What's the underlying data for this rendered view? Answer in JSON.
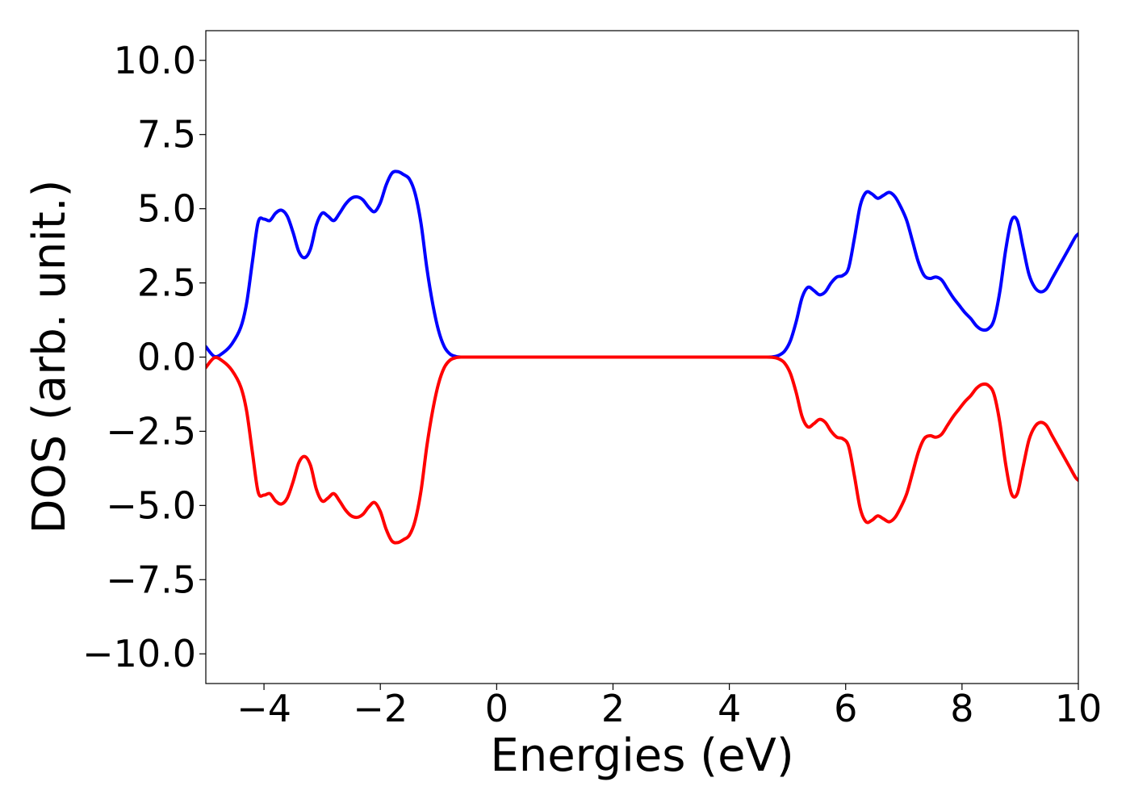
{
  "chart_data": {
    "type": "line",
    "title": "",
    "xlabel": "Energies (eV)",
    "ylabel": "DOS (arb. unit.)",
    "xlim": [
      -5,
      10
    ],
    "ylim": [
      -11,
      11
    ],
    "grid": false,
    "legend": "none",
    "x_ticks": [
      -4,
      -2,
      0,
      2,
      4,
      6,
      8,
      10
    ],
    "x_tick_labels": [
      "−4",
      "−2",
      "0",
      "2",
      "4",
      "6",
      "8",
      "10"
    ],
    "y_ticks": [
      10,
      7.5,
      5,
      2.5,
      0,
      -2.5,
      -5,
      -7.5,
      -10
    ],
    "y_tick_labels": [
      "10.0",
      "7.5",
      "5.0",
      "2.5",
      "0.0",
      "−2.5",
      "−5.0",
      "−7.5",
      "−10.0"
    ],
    "series": [
      {
        "color": "#0000ff",
        "x": [
          -5.0,
          -4.85,
          -4.7,
          -4.55,
          -4.4,
          -4.3,
          -4.2,
          -4.1,
          -4.0,
          -3.9,
          -3.8,
          -3.7,
          -3.6,
          -3.5,
          -3.4,
          -3.3,
          -3.2,
          -3.1,
          -3.0,
          -2.9,
          -2.8,
          -2.7,
          -2.6,
          -2.5,
          -2.4,
          -2.3,
          -2.2,
          -2.1,
          -2.0,
          -1.9,
          -1.8,
          -1.7,
          -1.6,
          -1.5,
          -1.4,
          -1.3,
          -1.2,
          -1.1,
          -1.0,
          -0.9,
          -0.8,
          -0.7,
          -0.6,
          -0.5,
          0.0,
          2.0,
          4.0,
          4.6,
          4.75,
          4.85,
          4.95,
          5.05,
          5.15,
          5.25,
          5.35,
          5.45,
          5.55,
          5.65,
          5.75,
          5.85,
          5.95,
          6.05,
          6.15,
          6.25,
          6.35,
          6.45,
          6.55,
          6.65,
          6.75,
          6.85,
          6.95,
          7.05,
          7.15,
          7.25,
          7.35,
          7.45,
          7.55,
          7.65,
          7.75,
          7.85,
          7.95,
          8.05,
          8.15,
          8.25,
          8.35,
          8.45,
          8.55,
          8.65,
          8.75,
          8.85,
          8.95,
          9.05,
          9.15,
          9.25,
          9.35,
          9.45,
          9.55,
          9.65,
          9.75,
          9.85,
          9.95,
          10.0
        ],
        "y": [
          0.35,
          0.02,
          0.15,
          0.45,
          1.0,
          1.8,
          3.2,
          4.55,
          4.65,
          4.6,
          4.85,
          4.95,
          4.75,
          4.2,
          3.55,
          3.35,
          3.65,
          4.45,
          4.85,
          4.75,
          4.6,
          4.85,
          5.15,
          5.35,
          5.4,
          5.3,
          5.05,
          4.9,
          5.2,
          5.8,
          6.2,
          6.25,
          6.15,
          6.0,
          5.5,
          4.5,
          3.0,
          1.8,
          0.9,
          0.35,
          0.1,
          0.02,
          0.0,
          0.0,
          0.0,
          0.0,
          0.0,
          0.0,
          0.01,
          0.06,
          0.2,
          0.55,
          1.2,
          2.0,
          2.35,
          2.25,
          2.1,
          2.2,
          2.5,
          2.7,
          2.75,
          3.0,
          4.0,
          5.1,
          5.55,
          5.5,
          5.35,
          5.45,
          5.55,
          5.4,
          5.05,
          4.6,
          3.9,
          3.2,
          2.75,
          2.65,
          2.7,
          2.6,
          2.3,
          2.0,
          1.75,
          1.5,
          1.3,
          1.05,
          0.92,
          0.95,
          1.25,
          2.2,
          3.6,
          4.6,
          4.6,
          3.7,
          2.8,
          2.35,
          2.2,
          2.3,
          2.65,
          3.0,
          3.35,
          3.7,
          4.05,
          4.15
        ]
      },
      {
        "color": "#ff0000",
        "x": [
          -5.0,
          -4.85,
          -4.7,
          -4.55,
          -4.4,
          -4.3,
          -4.2,
          -4.1,
          -4.0,
          -3.9,
          -3.8,
          -3.7,
          -3.6,
          -3.5,
          -3.4,
          -3.3,
          -3.2,
          -3.1,
          -3.0,
          -2.9,
          -2.8,
          -2.7,
          -2.6,
          -2.5,
          -2.4,
          -2.3,
          -2.2,
          -2.1,
          -2.0,
          -1.9,
          -1.8,
          -1.7,
          -1.6,
          -1.5,
          -1.4,
          -1.3,
          -1.2,
          -1.1,
          -1.0,
          -0.9,
          -0.8,
          -0.7,
          -0.6,
          -0.5,
          0.0,
          2.0,
          4.0,
          4.6,
          4.75,
          4.85,
          4.95,
          5.05,
          5.15,
          5.25,
          5.35,
          5.45,
          5.55,
          5.65,
          5.75,
          5.85,
          5.95,
          6.05,
          6.15,
          6.25,
          6.35,
          6.45,
          6.55,
          6.65,
          6.75,
          6.85,
          6.95,
          7.05,
          7.15,
          7.25,
          7.35,
          7.45,
          7.55,
          7.65,
          7.75,
          7.85,
          7.95,
          8.05,
          8.15,
          8.25,
          8.35,
          8.45,
          8.55,
          8.65,
          8.75,
          8.85,
          8.95,
          9.05,
          9.15,
          9.25,
          9.35,
          9.45,
          9.55,
          9.65,
          9.75,
          9.85,
          9.95,
          10.0
        ],
        "y": [
          -0.35,
          -0.02,
          -0.15,
          -0.45,
          -1.0,
          -1.8,
          -3.2,
          -4.55,
          -4.65,
          -4.6,
          -4.85,
          -4.95,
          -4.75,
          -4.2,
          -3.55,
          -3.35,
          -3.65,
          -4.45,
          -4.85,
          -4.75,
          -4.6,
          -4.85,
          -5.15,
          -5.35,
          -5.4,
          -5.3,
          -5.05,
          -4.9,
          -5.2,
          -5.8,
          -6.2,
          -6.25,
          -6.15,
          -6.0,
          -5.5,
          -4.5,
          -3.0,
          -1.8,
          -0.9,
          -0.35,
          -0.1,
          -0.02,
          0.0,
          0.0,
          0.0,
          0.0,
          0.0,
          0.0,
          -0.01,
          -0.06,
          -0.2,
          -0.55,
          -1.2,
          -2.0,
          -2.35,
          -2.25,
          -2.1,
          -2.2,
          -2.5,
          -2.7,
          -2.75,
          -3.0,
          -4.0,
          -5.1,
          -5.55,
          -5.5,
          -5.35,
          -5.45,
          -5.55,
          -5.4,
          -5.05,
          -4.6,
          -3.9,
          -3.2,
          -2.75,
          -2.65,
          -2.7,
          -2.6,
          -2.3,
          -2.0,
          -1.75,
          -1.5,
          -1.3,
          -1.05,
          -0.92,
          -0.95,
          -1.25,
          -2.2,
          -3.6,
          -4.6,
          -4.6,
          -3.7,
          -2.8,
          -2.35,
          -2.2,
          -2.3,
          -2.65,
          -3.0,
          -3.35,
          -3.7,
          -4.05,
          -4.15
        ]
      }
    ]
  }
}
